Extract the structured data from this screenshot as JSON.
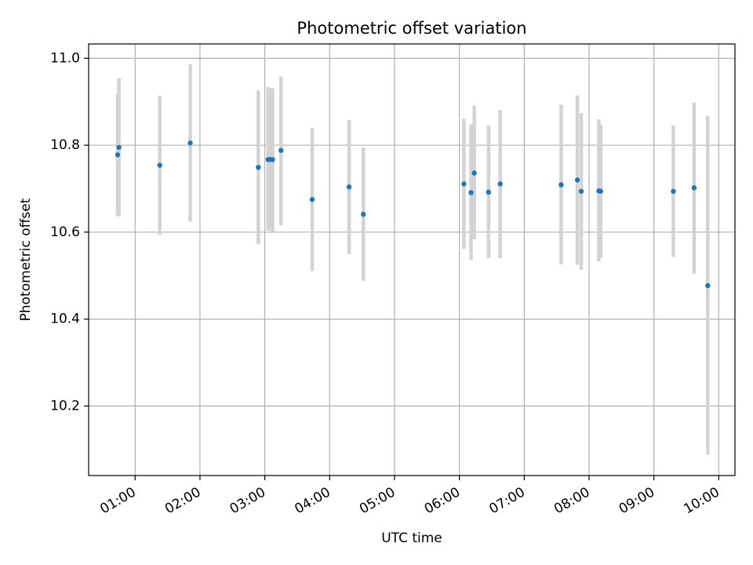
{
  "chart_data": {
    "type": "scatter",
    "title": "Photometric offset variation",
    "xlabel": "UTC time",
    "ylabel": "Photometric offset",
    "x_unit": "hours UTC",
    "xlim": [
      0.283,
      10.25
    ],
    "ylim": [
      10.04,
      11.033
    ],
    "grid": true,
    "colors": {
      "point": "#1f77b4",
      "errorbar": "#d3d3d3",
      "grid": "#b0b0b0"
    },
    "xticks": [
      {
        "value": 1,
        "label": "01:00"
      },
      {
        "value": 2,
        "label": "02:00"
      },
      {
        "value": 3,
        "label": "03:00"
      },
      {
        "value": 4,
        "label": "04:00"
      },
      {
        "value": 5,
        "label": "05:00"
      },
      {
        "value": 6,
        "label": "06:00"
      },
      {
        "value": 7,
        "label": "07:00"
      },
      {
        "value": 8,
        "label": "08:00"
      },
      {
        "value": 9,
        "label": "09:00"
      },
      {
        "value": 10,
        "label": "10:00"
      }
    ],
    "yticks": [
      {
        "value": 10.2,
        "label": "10.2"
      },
      {
        "value": 10.4,
        "label": "10.4"
      },
      {
        "value": 10.6,
        "label": "10.6"
      },
      {
        "value": 10.8,
        "label": "10.8"
      },
      {
        "value": 11.0,
        "label": "11.0"
      }
    ],
    "points": [
      {
        "x": 0.73,
        "y": 10.778,
        "lo": 10.638,
        "hi": 10.918
      },
      {
        "x": 0.75,
        "y": 10.795,
        "lo": 10.636,
        "hi": 10.954
      },
      {
        "x": 1.38,
        "y": 10.754,
        "lo": 10.594,
        "hi": 10.914
      },
      {
        "x": 1.85,
        "y": 10.805,
        "lo": 10.624,
        "hi": 10.986
      },
      {
        "x": 2.9,
        "y": 10.749,
        "lo": 10.573,
        "hi": 10.926
      },
      {
        "x": 3.05,
        "y": 10.767,
        "lo": 10.603,
        "hi": 10.934
      },
      {
        "x": 3.08,
        "y": 10.767,
        "lo": 10.603,
        "hi": 10.931
      },
      {
        "x": 3.12,
        "y": 10.767,
        "lo": 10.601,
        "hi": 10.931
      },
      {
        "x": 3.25,
        "y": 10.788,
        "lo": 10.616,
        "hi": 10.958
      },
      {
        "x": 3.73,
        "y": 10.675,
        "lo": 10.51,
        "hi": 10.84
      },
      {
        "x": 4.3,
        "y": 10.704,
        "lo": 10.549,
        "hi": 10.858
      },
      {
        "x": 4.52,
        "y": 10.641,
        "lo": 10.488,
        "hi": 10.795
      },
      {
        "x": 6.07,
        "y": 10.711,
        "lo": 10.561,
        "hi": 10.861
      },
      {
        "x": 6.18,
        "y": 10.691,
        "lo": 10.536,
        "hi": 10.848
      },
      {
        "x": 6.23,
        "y": 10.736,
        "lo": 10.584,
        "hi": 10.891
      },
      {
        "x": 6.45,
        "y": 10.692,
        "lo": 10.54,
        "hi": 10.846
      },
      {
        "x": 6.63,
        "y": 10.711,
        "lo": 10.54,
        "hi": 10.881
      },
      {
        "x": 7.57,
        "y": 10.709,
        "lo": 10.526,
        "hi": 10.893
      },
      {
        "x": 7.82,
        "y": 10.72,
        "lo": 10.525,
        "hi": 10.915
      },
      {
        "x": 7.88,
        "y": 10.694,
        "lo": 10.513,
        "hi": 10.874
      },
      {
        "x": 8.15,
        "y": 10.695,
        "lo": 10.533,
        "hi": 10.86
      },
      {
        "x": 8.18,
        "y": 10.694,
        "lo": 10.541,
        "hi": 10.847
      },
      {
        "x": 9.3,
        "y": 10.694,
        "lo": 10.543,
        "hi": 10.845
      },
      {
        "x": 9.62,
        "y": 10.702,
        "lo": 10.505,
        "hi": 10.898
      },
      {
        "x": 9.83,
        "y": 10.477,
        "lo": 10.088,
        "hi": 10.867
      }
    ]
  }
}
